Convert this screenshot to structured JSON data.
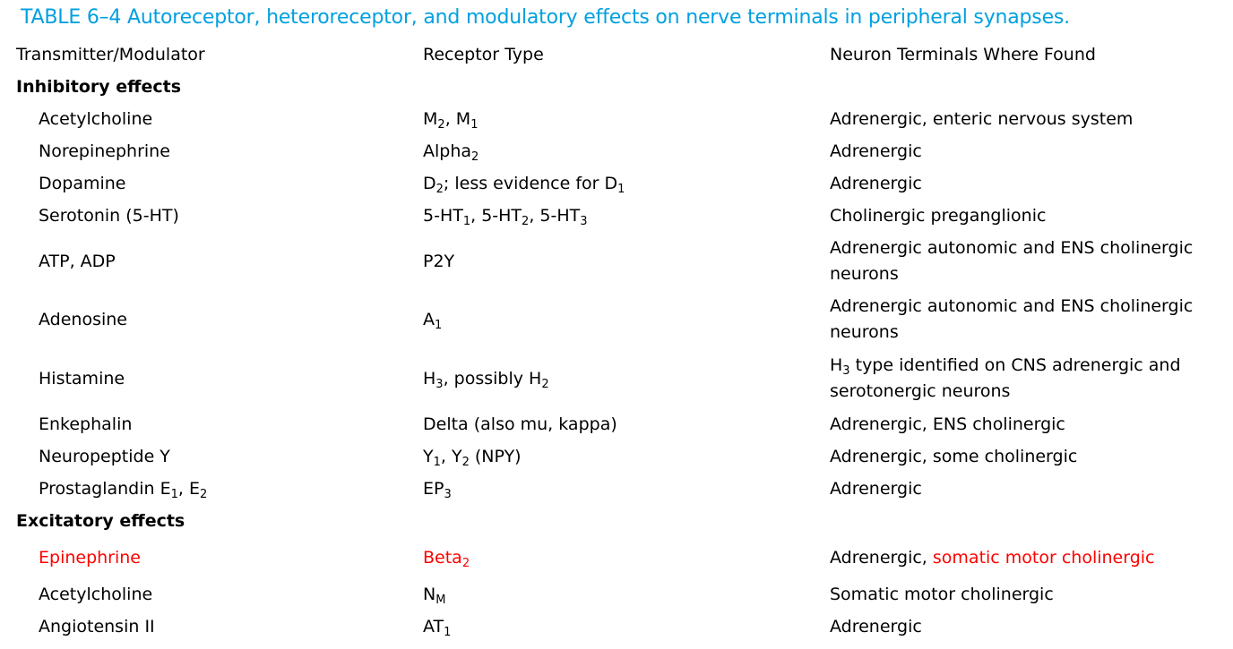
{
  "colors": {
    "title": "#00a0e0",
    "highlight": "#ff0000",
    "text": "#000000"
  },
  "title": "TABLE 6–4 Autoreceptor, heteroreceptor, and modulatory effects on nerve terminals in peripheral synapses.",
  "headers": {
    "transmitter": "Transmitter/Modulator",
    "receptor": "Receptor Type",
    "terminals": "Neuron Terminals Where Found"
  },
  "sections": {
    "inhibitory": "Inhibitory effects",
    "excitatory": "Excitatory effects"
  },
  "rows": {
    "ach_inh": {
      "transmitter": "Acetylcholine",
      "receptor": {
        "m": "M",
        "n2": "2",
        "sep": ", ",
        "m1": "M",
        "n1": "1"
      },
      "terminals": "Adrenergic, enteric nervous system"
    },
    "norepinephrine": {
      "transmitter": "Norepinephrine",
      "receptor": {
        "base": "Alpha",
        "sub": "2"
      },
      "terminals": "Adrenergic"
    },
    "dopamine": {
      "transmitter": "Dopamine",
      "receptor": {
        "a": "D",
        "a_sub": "2",
        "mid": "; less evidence for D",
        "b_sub": "1"
      },
      "terminals": "Adrenergic"
    },
    "serotonin": {
      "transmitter": "Serotonin (5-HT)",
      "receptor": {
        "a": "5-HT",
        "a_sub": "1",
        "b": ", 5-HT",
        "b_sub": "2",
        "c": ", 5-HT",
        "c_sub": "3"
      },
      "terminals": "Cholinergic preganglionic"
    },
    "atp": {
      "transmitter": "ATP, ADP",
      "receptor": "P2Y",
      "terminals_line1": "Adrenergic autonomic and ENS cholinergic",
      "terminals_line2": "neurons"
    },
    "adenosine": {
      "transmitter": "Adenosine",
      "receptor": {
        "base": "A",
        "sub": "1"
      },
      "terminals_line1": "Adrenergic autonomic and ENS cholinergic",
      "terminals_line2": "neurons"
    },
    "histamine": {
      "transmitter": "Histamine",
      "receptor": {
        "a": "H",
        "a_sub": "3",
        "mid": ", possibly H",
        "b_sub": "2"
      },
      "terminals_line1": {
        "a": "H",
        "a_sub": "3",
        "rest": " type identified on CNS adrenergic and"
      },
      "terminals_line2": "serotonergic neurons"
    },
    "enkephalin": {
      "transmitter": "Enkephalin",
      "receptor": "Delta (also mu, kappa)",
      "terminals": "Adrenergic, ENS cholinergic"
    },
    "npy": {
      "transmitter": "Neuropeptide Y",
      "receptor": {
        "a": "Y",
        "a_sub": "1",
        "b": ", Y",
        "b_sub": "2",
        "rest": " (NPY)"
      },
      "terminals": "Adrenergic, some cholinergic"
    },
    "prostaglandin": {
      "transmitter": {
        "a": "Prostaglandin E",
        "a_sub": "1",
        "b": ", E",
        "b_sub": "2"
      },
      "receptor": {
        "base": "EP",
        "sub": "3"
      },
      "terminals": "Adrenergic"
    },
    "epinephrine": {
      "transmitter": "Epinephrine",
      "receptor": {
        "base": "Beta",
        "sub": "2"
      },
      "terminals_a": "Adrenergic, ",
      "terminals_b": "somatic motor cholinergic"
    },
    "ach_exc": {
      "transmitter": "Acetylcholine",
      "receptor": {
        "base": "N",
        "sub": "M"
      },
      "terminals": "Somatic motor cholinergic"
    },
    "angiotensin": {
      "transmitter": "Angiotensin II",
      "receptor": {
        "base": "AT",
        "sub": "1"
      },
      "terminals": "Adrenergic"
    }
  }
}
